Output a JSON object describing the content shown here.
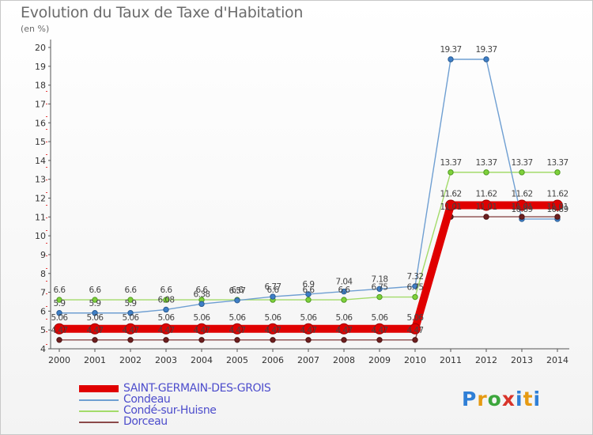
{
  "title": "Evolution du Taux de Taxe d'Habitation",
  "unit_label": "(en %)",
  "logo_text": "Proxiti",
  "chart_data": {
    "type": "line",
    "title": "Evolution du Taux de Taxe d'Habitation",
    "ylabel": "(en %)",
    "xlabel": "",
    "ylim": [
      4,
      20
    ],
    "yticks": [
      4,
      5,
      6,
      7,
      8,
      9,
      10,
      11,
      12,
      13,
      14,
      15,
      16,
      17,
      18,
      19,
      20
    ],
    "grid": false,
    "legend_position": "bottom-left",
    "categories": [
      "2000",
      "2001",
      "2002",
      "2003",
      "2004",
      "2005",
      "2006",
      "2007",
      "2008",
      "2009",
      "2010",
      "2011",
      "2012",
      "2013",
      "2014"
    ],
    "series": [
      {
        "name": "SAINT-GERMAIN-DES-GROIS",
        "color": "#e00000",
        "values": [
          5.06,
          5.06,
          5.06,
          5.06,
          5.06,
          5.06,
          5.06,
          5.06,
          5.06,
          5.06,
          5.06,
          11.62,
          11.62,
          11.62,
          11.62
        ],
        "labels": [
          "5.06",
          "5.06",
          "5.06",
          "5.06",
          "5.06",
          "5.06",
          "5.06",
          "5.06",
          "5.06",
          "5.06",
          "5.06",
          "11.62",
          "11.62",
          "11.62",
          "11.62"
        ]
      },
      {
        "name": "Condeau",
        "color": "#6f9fd2",
        "values": [
          5.9,
          5.9,
          5.9,
          6.08,
          6.38,
          6.57,
          6.77,
          6.9,
          7.04,
          7.18,
          7.32,
          19.37,
          19.37,
          10.89,
          10.89
        ],
        "labels": [
          "5.9",
          "5.9",
          "5.9",
          "6.08",
          "6.38",
          "6.57",
          "6.77",
          "6.9",
          "7.04",
          "7.18",
          "7.32",
          "19.37",
          "19.37",
          "10.89",
          "10.89"
        ]
      },
      {
        "name": "Condé-sur-Huisne",
        "color": "#a3db6a",
        "values": [
          6.6,
          6.6,
          6.6,
          6.6,
          6.6,
          6.6,
          6.6,
          6.6,
          6.6,
          6.75,
          6.75,
          13.37,
          13.37,
          13.37,
          13.37
        ],
        "labels": [
          "6.6",
          "6.6",
          "6.6",
          "6.6",
          "6.6",
          "6.6",
          "6.6",
          "6.6",
          "6.6",
          "6.75",
          "6.75",
          "13.37",
          "13.37",
          "13.37",
          "13.37"
        ]
      },
      {
        "name": "Dorceau",
        "color": "#8b4a4a",
        "values": [
          4.47,
          4.47,
          4.47,
          4.47,
          4.47,
          4.47,
          4.47,
          4.47,
          4.47,
          4.47,
          4.47,
          11.01,
          11.01,
          11.01,
          11.01
        ],
        "labels": [
          "4.47",
          "4.47",
          "4.47",
          "4.47",
          "4.47",
          "4.47",
          "4.47",
          "4.47",
          "4.47",
          "4.47",
          "4.47",
          "11.01",
          "11.01",
          "11.01",
          "11.01"
        ]
      }
    ]
  }
}
